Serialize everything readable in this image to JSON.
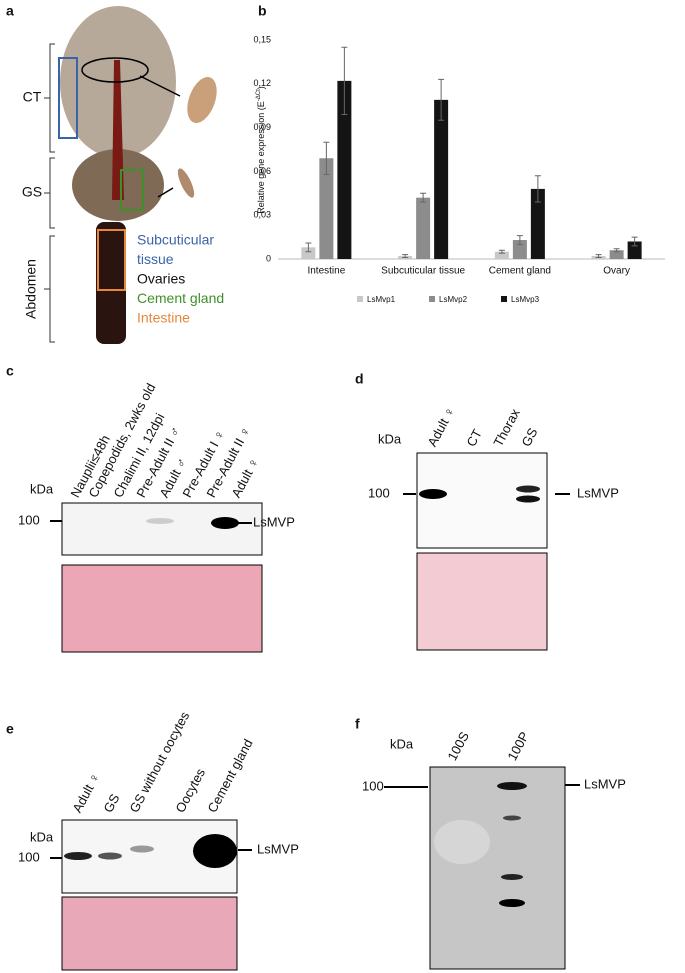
{
  "panel_labels": [
    "a",
    "b",
    "c",
    "d",
    "e",
    "f"
  ],
  "panel_a": {
    "regions": [
      "CT",
      "GS",
      "Abdomen"
    ],
    "legend": [
      {
        "lines": [
          "Subcuticular",
          "tissue"
        ],
        "color": "#3a64a8"
      },
      {
        "lines": [
          "Ovaries"
        ],
        "color": "#111111"
      },
      {
        "lines": [
          "Cement gland"
        ],
        "color": "#3f8f2a"
      },
      {
        "lines": [
          "Intestine"
        ],
        "color": "#e8873a"
      }
    ]
  },
  "chart_data": {
    "type": "bar",
    "y_label": "Relative gene  expression (E",
    "y_label_sup": "-ΔCt",
    "y_label_end": ")",
    "categories": [
      "Intestine",
      "Subcuticular tissue",
      "Cement gland",
      "Ovary"
    ],
    "series": [
      {
        "name": "LsMvp1",
        "color": "#c8c8c8",
        "values": [
          0.008,
          0.002,
          0.005,
          0.002
        ],
        "errors": [
          0.003,
          0.001,
          0.001,
          0.001
        ]
      },
      {
        "name": "LsMvp2",
        "color": "#8c8c8c",
        "values": [
          0.069,
          0.042,
          0.013,
          0.006
        ],
        "errors": [
          0.011,
          0.003,
          0.003,
          0.001
        ]
      },
      {
        "name": "LsMvp3",
        "color": "#141414",
        "values": [
          0.122,
          0.109,
          0.048,
          0.012
        ],
        "errors": [
          0.023,
          0.014,
          0.009,
          0.003
        ]
      }
    ],
    "ylim": [
      0,
      0.15
    ],
    "yticks": [
      0,
      {
        "value": 0.03,
        "label": "0,03"
      },
      {
        "value": 0.06,
        "label": "0,06"
      },
      {
        "value": 0.09,
        "label": "0,09"
      },
      {
        "value": 0.12,
        "label": "0,12"
      },
      {
        "value": 0.15,
        "label": "0,15"
      }
    ],
    "legend": "bottom"
  },
  "blots": {
    "c": {
      "lanes": [
        "Nauplii≤48h",
        "Copepodids, 2wks old",
        "Chalimi II, 12dpi",
        "Pre-Adult II ♂",
        "Adult ♂",
        "Pre-Adult I ♀",
        "Pre-Adult II ♀",
        "Adult ♀"
      ],
      "kda": "kDa",
      "marker": "100",
      "protein": "LsMVP"
    },
    "d": {
      "lanes": [
        "Adult ♀",
        "CT",
        "Thorax",
        "GS"
      ],
      "kda": "kDa",
      "marker": "100",
      "protein": "LsMVP"
    },
    "e": {
      "lanes": [
        "Adult ♀",
        "GS",
        "GS without oocytes",
        "Oocytes",
        "Cement gland"
      ],
      "kda": "kDa",
      "marker": "100",
      "protein": "LsMVP"
    },
    "f": {
      "lanes": [
        "100S",
        "100P"
      ],
      "kda": "kDa",
      "marker": "100",
      "protein": "LsMVP"
    }
  }
}
